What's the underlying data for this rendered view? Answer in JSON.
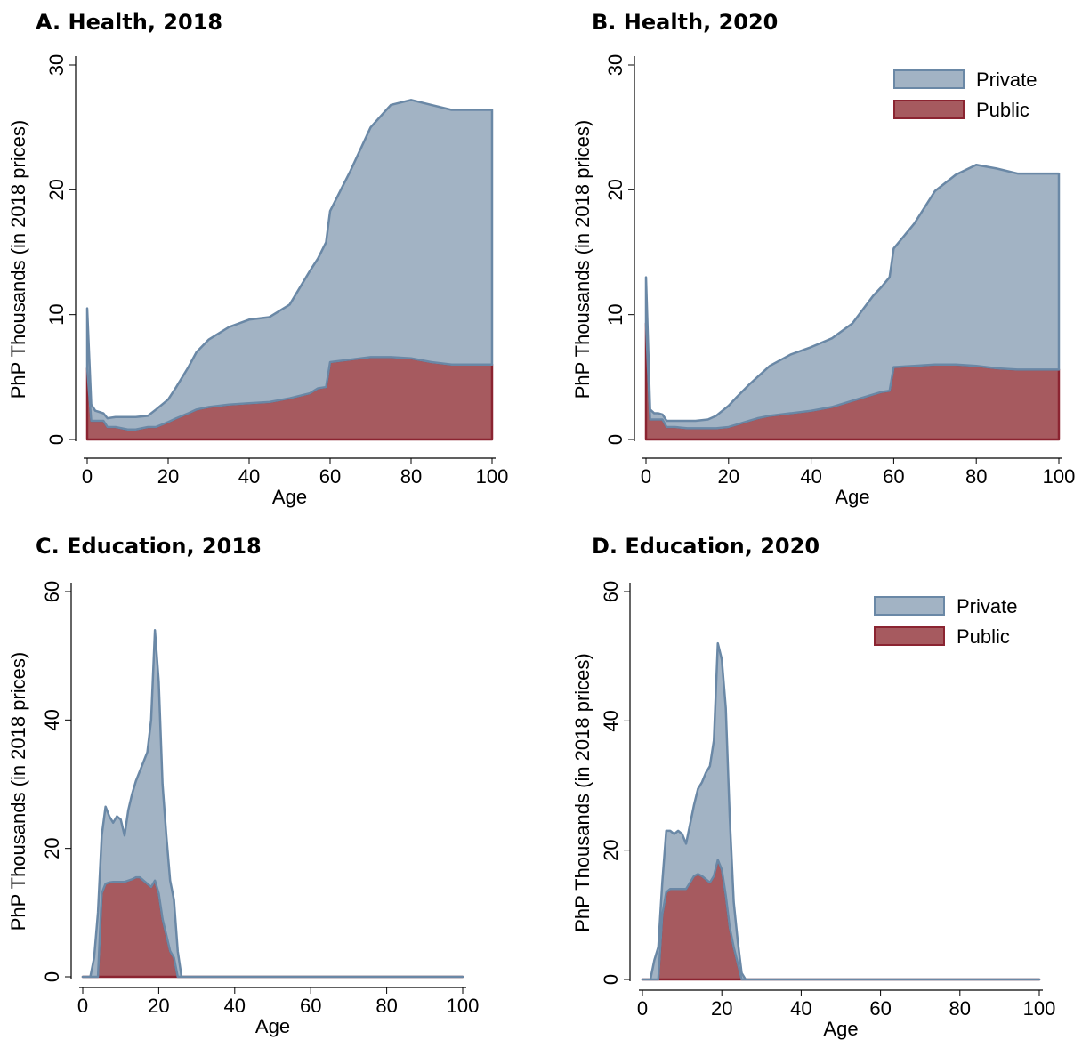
{
  "chart_data": [
    {
      "type": "stacked_area",
      "title": "A.  Health, 2018",
      "x_label": "Age",
      "y_label": "PhP Thousands (in 2018 prices)",
      "x": [
        0,
        1,
        2,
        3,
        4,
        5,
        7,
        10,
        12,
        15,
        17,
        20,
        22,
        25,
        27,
        30,
        35,
        40,
        45,
        50,
        55,
        57,
        59,
        60,
        65,
        70,
        75,
        80,
        85,
        90,
        95,
        100
      ],
      "series": [
        {
          "name": "Public",
          "color": "#a65a5f",
          "values": [
            5.7,
            1.5,
            1.5,
            1.5,
            1.5,
            1.0,
            1.0,
            0.8,
            0.8,
            1.0,
            1.0,
            1.4,
            1.7,
            2.1,
            2.4,
            2.6,
            2.8,
            2.9,
            3.0,
            3.3,
            3.7,
            4.1,
            4.2,
            6.2,
            6.4,
            6.6,
            6.6,
            6.5,
            6.2,
            6.0,
            6.0,
            6.0
          ]
        },
        {
          "name": "Private",
          "color": "#a2b3c4",
          "values": [
            4.8,
            1.3,
            0.8,
            0.7,
            0.6,
            0.7,
            0.8,
            1.0,
            1.0,
            0.9,
            1.4,
            1.8,
            2.5,
            3.7,
            4.6,
            5.4,
            6.2,
            6.7,
            6.8,
            7.5,
            9.8,
            10.4,
            11.6,
            12.1,
            15.1,
            18.4,
            20.2,
            20.7,
            20.6,
            20.4,
            20.4,
            20.4
          ]
        }
      ],
      "xlim": [
        0,
        100
      ],
      "xticks": [
        0,
        20,
        40,
        60,
        80,
        100
      ],
      "ylim": [
        0,
        30
      ],
      "yticks": [
        0,
        10,
        20,
        30
      ],
      "legend": false
    },
    {
      "type": "stacked_area",
      "title": "B.  Health, 2020",
      "x_label": "Age",
      "y_label": "PhP Thousands (in 2018 prices)",
      "x": [
        0,
        1,
        2,
        3,
        4,
        5,
        7,
        10,
        12,
        15,
        17,
        20,
        22,
        25,
        27,
        30,
        35,
        40,
        45,
        50,
        55,
        57,
        59,
        60,
        65,
        70,
        75,
        80,
        85,
        90,
        95,
        100
      ],
      "series": [
        {
          "name": "Public",
          "color": "#a65a5f",
          "values": [
            9.3,
            1.6,
            1.6,
            1.6,
            1.6,
            1.0,
            1.0,
            0.9,
            0.9,
            0.9,
            0.9,
            1.0,
            1.2,
            1.5,
            1.7,
            1.9,
            2.1,
            2.3,
            2.6,
            3.1,
            3.6,
            3.8,
            3.9,
            5.8,
            5.9,
            6.0,
            6.0,
            5.9,
            5.7,
            5.6,
            5.6,
            5.6
          ]
        },
        {
          "name": "Private",
          "color": "#a2b3c4",
          "values": [
            3.7,
            0.8,
            0.5,
            0.5,
            0.4,
            0.5,
            0.5,
            0.6,
            0.6,
            0.7,
            1.0,
            1.7,
            2.2,
            2.9,
            3.3,
            4.0,
            4.7,
            5.1,
            5.5,
            6.2,
            7.9,
            8.4,
            9.1,
            9.5,
            11.4,
            13.9,
            15.2,
            16.1,
            16.0,
            15.7,
            15.7,
            15.7
          ]
        }
      ],
      "xlim": [
        0,
        100
      ],
      "xticks": [
        0,
        20,
        40,
        60,
        80,
        100
      ],
      "ylim": [
        0,
        30
      ],
      "yticks": [
        0,
        10,
        20,
        30
      ],
      "legend": "upper right"
    },
    {
      "type": "stacked_area",
      "title": "C.  Education, 2018",
      "x_label": "Age",
      "y_label": "PhP Thousands (in 2018 prices)",
      "x": [
        0,
        1,
        2,
        3,
        4,
        5,
        6,
        7,
        8,
        9,
        10,
        11,
        12,
        13,
        14,
        15,
        16,
        17,
        18,
        19,
        20,
        21,
        22,
        23,
        24,
        25,
        26,
        30,
        40,
        50,
        60,
        70,
        80,
        90,
        100
      ],
      "series": [
        {
          "name": "Public",
          "color": "#a65a5f",
          "values": [
            0,
            0,
            0,
            0,
            0,
            13,
            14.5,
            14.7,
            14.8,
            14.8,
            14.8,
            14.8,
            15,
            15.2,
            15.5,
            15.5,
            15,
            14.5,
            14,
            15,
            13,
            9,
            6.5,
            4,
            3,
            0,
            0,
            0,
            0,
            0,
            0,
            0,
            0,
            0,
            0
          ]
        },
        {
          "name": "Private",
          "color": "#a2b3c4",
          "values": [
            0,
            0,
            0,
            3,
            10,
            9,
            12,
            10.3,
            9.2,
            10.2,
            9.7,
            7.2,
            11,
            13.3,
            15,
            16.5,
            18.5,
            20.5,
            26,
            39,
            33,
            21,
            15.5,
            11,
            9,
            4,
            0,
            0,
            0,
            0,
            0,
            0,
            0,
            0,
            0
          ]
        }
      ],
      "xlim": [
        0,
        100
      ],
      "xticks": [
        0,
        20,
        40,
        60,
        80,
        100
      ],
      "ylim": [
        0,
        60
      ],
      "yticks": [
        0,
        20,
        40,
        60
      ],
      "legend": false
    },
    {
      "type": "stacked_area",
      "title": "D.  Education, 2020",
      "x_label": "Age",
      "y_label": "PhP Thousands (in 2018 prices)",
      "x": [
        0,
        1,
        2,
        3,
        4,
        5,
        6,
        7,
        8,
        9,
        10,
        11,
        12,
        13,
        14,
        15,
        16,
        17,
        18,
        19,
        20,
        21,
        22,
        23,
        24,
        25,
        26,
        30,
        40,
        50,
        60,
        70,
        80,
        90,
        100
      ],
      "series": [
        {
          "name": "Public",
          "color": "#a65a5f",
          "values": [
            0,
            0,
            0,
            0,
            0,
            10,
            13.5,
            14,
            14,
            14,
            14,
            14,
            15,
            16,
            16.3,
            16,
            15.5,
            15,
            16,
            18.5,
            17,
            13,
            8,
            5,
            2.5,
            0,
            0,
            0,
            0,
            0,
            0,
            0,
            0,
            0,
            0
          ]
        },
        {
          "name": "Private",
          "color": "#a2b3c4",
          "values": [
            0,
            0,
            0,
            3,
            5,
            5,
            9.5,
            9,
            8.5,
            9,
            8.5,
            7,
            9,
            11,
            13.2,
            14.5,
            16.5,
            18,
            21,
            33.5,
            32.5,
            29,
            17,
            7,
            3.5,
            1,
            0,
            0,
            0,
            0,
            0,
            0,
            0,
            0,
            0
          ]
        }
      ],
      "xlim": [
        0,
        100
      ],
      "xticks": [
        0,
        20,
        40,
        60,
        80,
        100
      ],
      "ylim": [
        0,
        60
      ],
      "yticks": [
        0,
        20,
        40,
        60
      ],
      "legend": "upper right"
    }
  ]
}
